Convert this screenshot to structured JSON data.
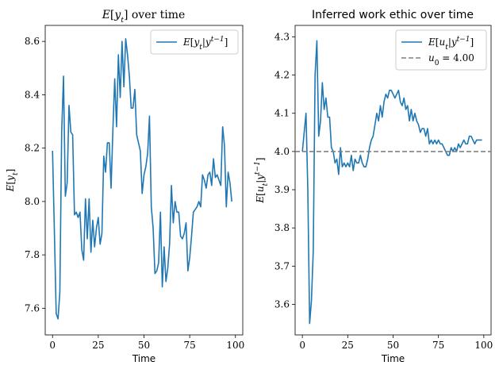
{
  "chart_data": [
    {
      "type": "line",
      "title": "E[y_t] over time",
      "title_parts": {
        "math": "E[y",
        "sub": "t",
        "close": "]",
        "rest": " over time"
      },
      "xlabel": "Time",
      "ylabel": "E[y_t]",
      "xlim": [
        -4,
        104
      ],
      "ylim": [
        7.5,
        8.66
      ],
      "x_ticks": [
        0,
        25,
        50,
        75,
        100
      ],
      "y_ticks": [
        7.6,
        7.8,
        8.0,
        8.2,
        8.4,
        8.6
      ],
      "legend_position": "upper right",
      "series": [
        {
          "name": "E[y_t|y^{t-1}]",
          "legend_label": "E[yt|yt−1]",
          "color": "#1f77b4",
          "style": "solid",
          "x": [
            0,
            1,
            2,
            3,
            4,
            5,
            6,
            7,
            8,
            9,
            10,
            11,
            12,
            13,
            14,
            15,
            16,
            17,
            18,
            19,
            20,
            21,
            22,
            23,
            24,
            25,
            26,
            27,
            28,
            29,
            30,
            31,
            32,
            33,
            34,
            35,
            36,
            37,
            38,
            39,
            40,
            41,
            42,
            43,
            44,
            45,
            46,
            47,
            48,
            49,
            50,
            51,
            52,
            53,
            54,
            55,
            56,
            57,
            58,
            59,
            60,
            61,
            62,
            63,
            64,
            65,
            66,
            67,
            68,
            69,
            70,
            71,
            72,
            73,
            74,
            75,
            76,
            77,
            78,
            79,
            80,
            81,
            82,
            83,
            84,
            85,
            86,
            87,
            88,
            89,
            90,
            91,
            92,
            93,
            94,
            95,
            96,
            97,
            98
          ],
          "y": [
            8.19,
            7.89,
            7.58,
            7.56,
            7.66,
            8.26,
            8.47,
            8.02,
            8.07,
            8.36,
            8.26,
            8.25,
            7.95,
            7.96,
            7.94,
            7.96,
            7.82,
            7.78,
            8.01,
            7.86,
            8.01,
            7.81,
            7.93,
            7.83,
            7.9,
            7.94,
            7.84,
            7.88,
            8.17,
            8.11,
            8.22,
            8.22,
            8.05,
            8.27,
            8.46,
            8.28,
            8.55,
            8.39,
            8.6,
            8.43,
            8.61,
            8.55,
            8.47,
            8.35,
            8.35,
            8.42,
            8.25,
            8.22,
            8.19,
            8.03,
            8.1,
            8.13,
            8.18,
            8.32,
            7.98,
            7.9,
            7.73,
            7.74,
            7.77,
            7.96,
            7.68,
            7.83,
            7.7,
            7.75,
            7.84,
            8.06,
            7.92,
            8.0,
            7.96,
            7.96,
            7.87,
            7.86,
            7.88,
            7.92,
            7.74,
            7.79,
            7.87,
            7.96,
            7.97,
            7.98,
            8.0,
            7.98,
            8.1,
            8.08,
            8.05,
            8.1,
            8.11,
            8.06,
            8.16,
            8.09,
            8.1,
            8.08,
            8.06,
            8.28,
            8.21,
            7.98,
            8.11,
            8.07,
            8.0
          ]
        }
      ]
    },
    {
      "type": "line",
      "title": "Inferred work ethic over time",
      "xlabel": "Time",
      "ylabel": "E[u_t|y^{t-1}]",
      "xlim": [
        -4,
        104
      ],
      "ylim": [
        3.52,
        4.33
      ],
      "x_ticks": [
        0,
        25,
        50,
        75,
        100
      ],
      "y_ticks": [
        3.6,
        3.7,
        3.8,
        3.9,
        4.0,
        4.1,
        4.2,
        4.3
      ],
      "legend_position": "upper right",
      "series": [
        {
          "name": "E[u_t|y^{t-1}]",
          "legend_label": "E[ut|yt−1]",
          "color": "#1f77b4",
          "style": "solid",
          "x": [
            0,
            1,
            2,
            3,
            4,
            5,
            6,
            7,
            8,
            9,
            10,
            11,
            12,
            13,
            14,
            15,
            16,
            17,
            18,
            19,
            20,
            21,
            22,
            23,
            24,
            25,
            26,
            27,
            28,
            29,
            30,
            31,
            32,
            33,
            34,
            35,
            36,
            37,
            38,
            39,
            40,
            41,
            42,
            43,
            44,
            45,
            46,
            47,
            48,
            49,
            50,
            51,
            52,
            53,
            54,
            55,
            56,
            57,
            58,
            59,
            60,
            61,
            62,
            63,
            64,
            65,
            66,
            67,
            68,
            69,
            70,
            71,
            72,
            73,
            74,
            75,
            76,
            77,
            78,
            79,
            80,
            81,
            82,
            83,
            84,
            85,
            86,
            87,
            88,
            89,
            90,
            91,
            92,
            93,
            94,
            95,
            96,
            97,
            98,
            99
          ],
          "y": [
            4.0,
            4.05,
            4.1,
            3.9,
            3.55,
            3.61,
            3.74,
            4.2,
            4.29,
            4.04,
            4.08,
            4.18,
            4.11,
            4.14,
            4.09,
            4.09,
            4.01,
            4.0,
            3.97,
            3.98,
            3.94,
            4.01,
            3.96,
            3.97,
            3.96,
            3.97,
            3.96,
            3.99,
            3.95,
            3.98,
            3.97,
            3.97,
            3.99,
            3.97,
            3.96,
            3.96,
            3.98,
            4.01,
            4.03,
            4.04,
            4.07,
            4.1,
            4.08,
            4.12,
            4.09,
            4.13,
            4.15,
            4.14,
            4.16,
            4.16,
            4.15,
            4.14,
            4.15,
            4.16,
            4.13,
            4.12,
            4.14,
            4.11,
            4.12,
            4.08,
            4.11,
            4.08,
            4.1,
            4.08,
            4.07,
            4.05,
            4.06,
            4.06,
            4.04,
            4.06,
            4.02,
            4.03,
            4.02,
            4.03,
            4.02,
            4.03,
            4.02,
            4.02,
            4.01,
            4.0,
            3.99,
            3.99,
            4.01,
            4.0,
            4.01,
            4.0,
            4.02,
            4.01,
            4.02,
            4.03,
            4.02,
            4.02,
            4.04,
            4.04,
            4.03,
            4.02,
            4.03,
            4.03,
            4.03,
            4.03
          ]
        },
        {
          "name": "u_0 = 4.00",
          "legend_label": "u0 = 4.00",
          "color": "#808080",
          "style": "dashed",
          "hline": 4.0
        }
      ]
    }
  ]
}
